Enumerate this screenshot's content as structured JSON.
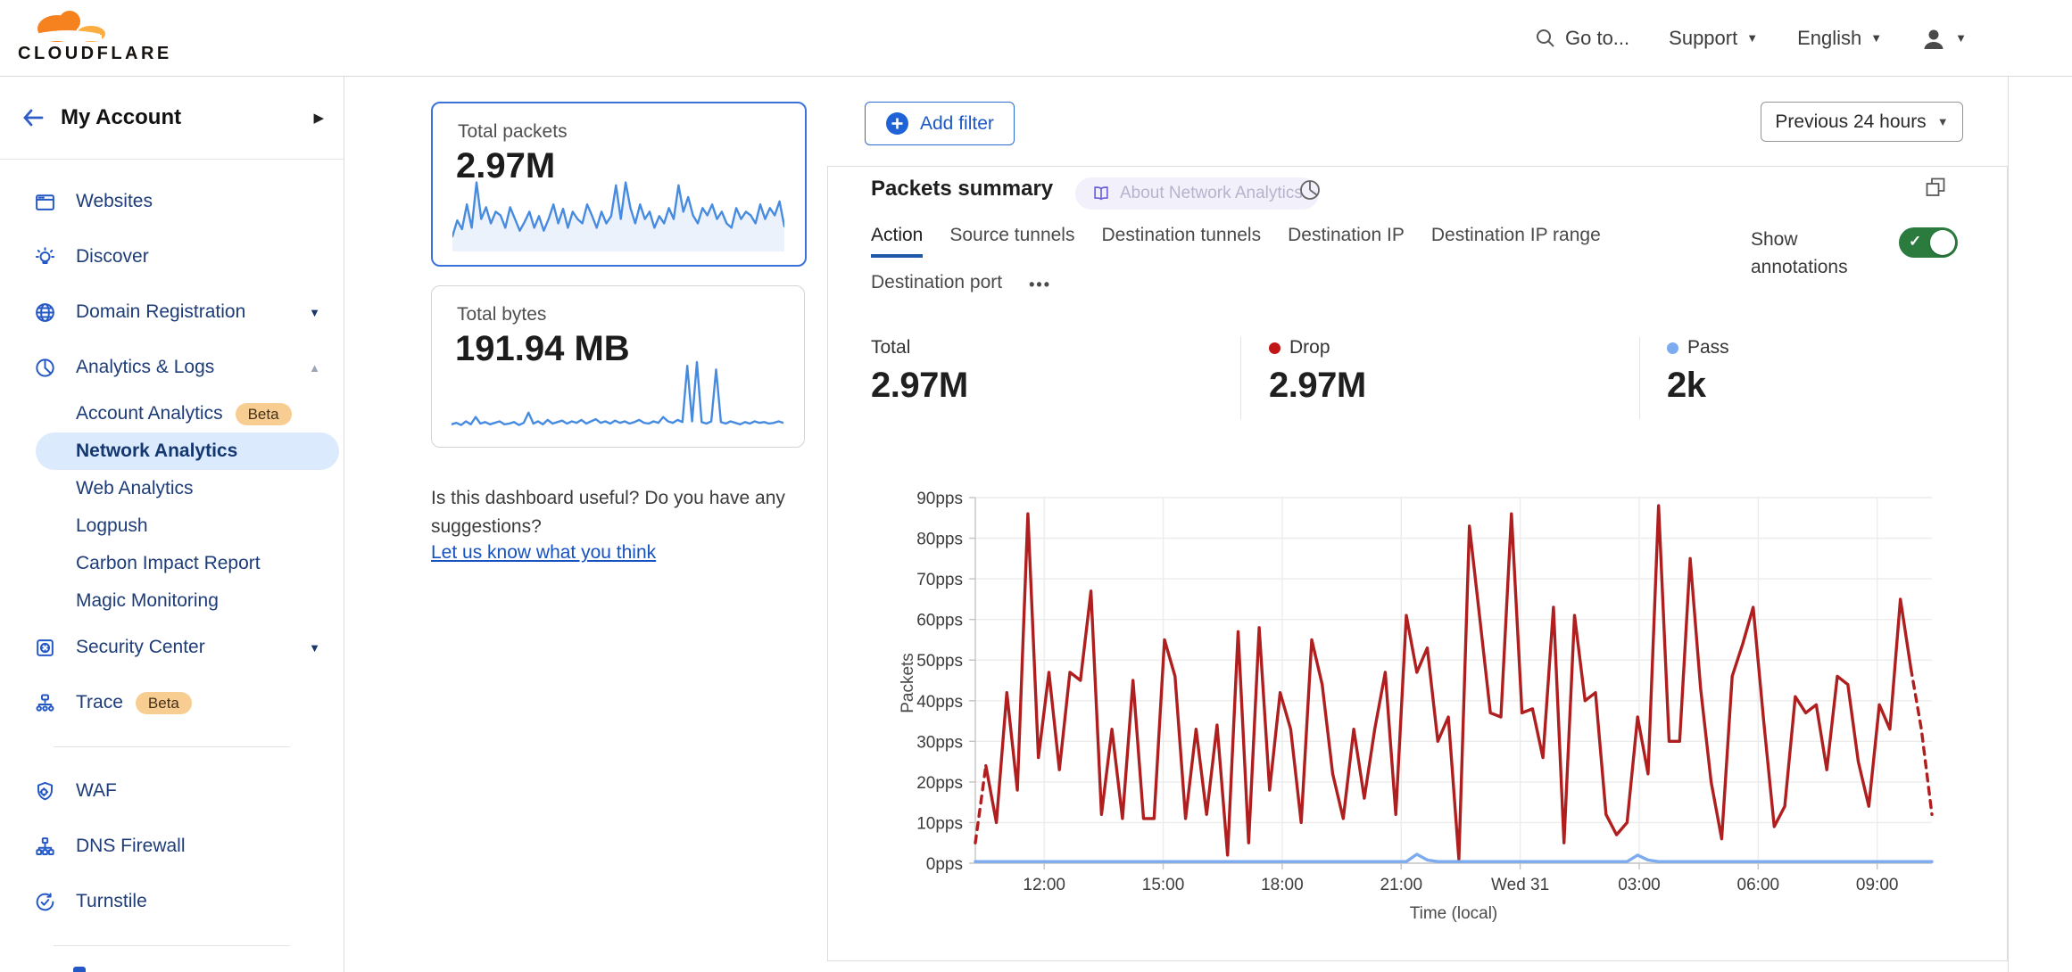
{
  "topbar": {
    "brand": "CLOUDFLARE",
    "goto": "Go to...",
    "support": "Support",
    "language": "English"
  },
  "sidebar": {
    "account_label": "My Account",
    "items": [
      {
        "label": "Websites",
        "icon": "browser"
      },
      {
        "label": "Discover",
        "icon": "lightbulb"
      },
      {
        "label": "Domain Registration",
        "icon": "globe",
        "chevron": "down"
      },
      {
        "label": "Analytics & Logs",
        "icon": "pie",
        "chevron": "up"
      },
      {
        "label": "Account Analytics",
        "indent": true,
        "badge": "Beta"
      },
      {
        "label": "Network Analytics",
        "indent": true,
        "selected": true
      },
      {
        "label": "Web Analytics",
        "indent": true
      },
      {
        "label": "Logpush",
        "indent": true
      },
      {
        "label": "Carbon Impact Report",
        "indent": true
      },
      {
        "label": "Magic Monitoring",
        "indent": true
      },
      {
        "label": "Security Center",
        "icon": "safe",
        "chevron": "down"
      },
      {
        "label": "Trace",
        "icon": "trace",
        "badge": "Beta"
      },
      {
        "divider": true
      },
      {
        "label": "WAF",
        "icon": "shield"
      },
      {
        "label": "DNS Firewall",
        "icon": "hierarchy"
      },
      {
        "label": "Turnstile",
        "icon": "rotate"
      },
      {
        "divider": true
      }
    ]
  },
  "cards": {
    "packets": {
      "title": "Total packets",
      "value": "2.97M",
      "spark": [
        18,
        40,
        28,
        62,
        30,
        92,
        42,
        58,
        36,
        52,
        47,
        30,
        58,
        42,
        26,
        38,
        52,
        30,
        46,
        26,
        42,
        62,
        36,
        56,
        30,
        52,
        42,
        36,
        62,
        47,
        30,
        52,
        36,
        46,
        88,
        42,
        92,
        57,
        36,
        62,
        42,
        52,
        30,
        46,
        36,
        57,
        42,
        88,
        52,
        72,
        47,
        36,
        57,
        47,
        62,
        42,
        52,
        36,
        30,
        57,
        42,
        52,
        47,
        36,
        62,
        42,
        57,
        47,
        66,
        32
      ]
    },
    "bytes": {
      "title": "Total bytes",
      "value": "191.94 MB",
      "spark": [
        10,
        12,
        9,
        14,
        10,
        20,
        11,
        13,
        10,
        12,
        14,
        10,
        11,
        13,
        9,
        12,
        26,
        11,
        14,
        10,
        16,
        11,
        13,
        15,
        11,
        14,
        12,
        16,
        11,
        14,
        17,
        12,
        14,
        11,
        15,
        12,
        14,
        11,
        13,
        16,
        12,
        11,
        14,
        12,
        20,
        14,
        12,
        16,
        13,
        90,
        14,
        95,
        13,
        11,
        14,
        85,
        13,
        11,
        14,
        12,
        10,
        13,
        11,
        14,
        12,
        13,
        11,
        12,
        14,
        12
      ]
    },
    "feedback_line1": "Is this dashboard useful? Do you have any suggestions?",
    "feedback_link": "Let us know what you think"
  },
  "main": {
    "add_filter": "Add filter",
    "time_range": "Previous 24 hours",
    "panel_title": "Packets summary",
    "about_badge": "About Network Analytics",
    "tabs": [
      "Action",
      "Source tunnels",
      "Destination tunnels",
      "Destination IP",
      "Destination IP range",
      "Destination port"
    ],
    "active_tab": "Action",
    "more_tab": "•••",
    "show_annotations": "Show annotations",
    "stats": [
      {
        "label": "Total",
        "value": "2.97M"
      },
      {
        "label": "Drop",
        "value": "2.97M",
        "dot": "#c01616"
      },
      {
        "label": "Pass",
        "value": "2k",
        "dot": "#7cabf0"
      }
    ]
  },
  "chart_data": {
    "type": "line",
    "title": "Packets summary",
    "xlabel": "Time (local)",
    "ylabel": "Packets",
    "ylim": [
      0,
      90
    ],
    "grid": true,
    "y_tick_labels": [
      "0pps",
      "10pps",
      "20pps",
      "30pps",
      "40pps",
      "50pps",
      "60pps",
      "70pps",
      "80pps",
      "90pps"
    ],
    "x_tick_labels": [
      "12:00",
      "15:00",
      "18:00",
      "21:00",
      "Wed 31",
      "03:00",
      "06:00",
      "09:00"
    ],
    "legend": [
      {
        "name": "Drop",
        "color": "#b01f1f"
      },
      {
        "name": "Pass",
        "color": "#7cabf0"
      }
    ],
    "series": [
      {
        "name": "Drop",
        "color": "#b01f1f",
        "dashed_head": 1,
        "dashed_tail": 2,
        "values": [
          5,
          24,
          10,
          42,
          18,
          86,
          26,
          47,
          23,
          47,
          45,
          67,
          12,
          33,
          11,
          45,
          11,
          11,
          55,
          46,
          11,
          33,
          12,
          34,
          2,
          57,
          5,
          58,
          18,
          42,
          33,
          10,
          55,
          44,
          22,
          11,
          33,
          16,
          33,
          47,
          12,
          61,
          47,
          53,
          30,
          36,
          1,
          83,
          60,
          37,
          36,
          86,
          37,
          38,
          26,
          63,
          5,
          61,
          40,
          42,
          12,
          7,
          10,
          36,
          22,
          88,
          30,
          30,
          75,
          43,
          20,
          6,
          46,
          54,
          63,
          35,
          9,
          14,
          41,
          37,
          39,
          23,
          46,
          44,
          25,
          14,
          39,
          33,
          65,
          48,
          33,
          12
        ]
      },
      {
        "name": "Pass",
        "color": "#7cabf0",
        "values": [
          0.4,
          0.4,
          0.4,
          0.4,
          0.4,
          0.4,
          0.4,
          0.4,
          0.4,
          0.4,
          0.4,
          0.4,
          0.4,
          0.4,
          0.4,
          0.4,
          0.4,
          0.4,
          0.4,
          0.4,
          0.4,
          0.4,
          0.4,
          0.4,
          0.4,
          0.4,
          0.4,
          0.4,
          0.4,
          0.4,
          0.4,
          0.4,
          0.4,
          0.4,
          0.4,
          0.4,
          0.4,
          0.4,
          0.4,
          0.4,
          0.4,
          0.4,
          2.2,
          0.8,
          0.4,
          0.4,
          0.4,
          0.4,
          0.4,
          0.4,
          0.4,
          0.4,
          0.4,
          0.4,
          0.4,
          0.4,
          0.4,
          0.4,
          0.4,
          0.4,
          0.4,
          0.4,
          0.4,
          2.0,
          0.8,
          0.4,
          0.4,
          0.4,
          0.4,
          0.4,
          0.4,
          0.4,
          0.4,
          0.4,
          0.4,
          0.4,
          0.4,
          0.4,
          0.4,
          0.4,
          0.4,
          0.4,
          0.4,
          0.4,
          0.4,
          0.4,
          0.4,
          0.4,
          0.4,
          0.4,
          0.4,
          0.4
        ]
      }
    ]
  }
}
